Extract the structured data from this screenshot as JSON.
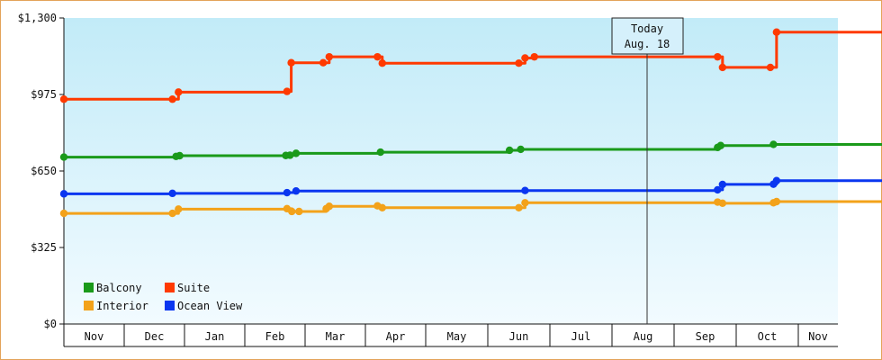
{
  "chart_data": {
    "type": "line",
    "y_ticks": [
      {
        "value": 0,
        "label": "$0"
      },
      {
        "value": 325,
        "label": "$325"
      },
      {
        "value": 650,
        "label": "$650"
      },
      {
        "value": 975,
        "label": "$975"
      },
      {
        "value": 1300,
        "label": "$1,300"
      }
    ],
    "ylim": [
      0,
      1300
    ],
    "months": [
      "Nov",
      "Dec",
      "Jan",
      "Feb",
      "Mar",
      "Apr",
      "May",
      "Jun",
      "Jul",
      "Aug",
      "Sep",
      "Oct",
      "Nov"
    ],
    "today": {
      "line1": "Today",
      "line2": "Aug. 18"
    },
    "grid": false,
    "legend_placement": "bottom-left",
    "series": [
      {
        "name": "Balcony",
        "color": "#1a9a1a",
        "points": [
          [
            0,
            709
          ],
          [
            1.86,
            712
          ],
          [
            1.92,
            715
          ],
          [
            3.68,
            716
          ],
          [
            3.75,
            717
          ],
          [
            3.85,
            725
          ],
          [
            5.25,
            730
          ],
          [
            7.35,
            738
          ],
          [
            7.53,
            742
          ],
          [
            10.7,
            750
          ],
          [
            10.75,
            758
          ],
          [
            11.6,
            763
          ],
          [
            14.65,
            765
          ],
          [
            14.72,
            750
          ],
          [
            16.35,
            752
          ],
          [
            17.6,
            751
          ],
          [
            18.6,
            747
          ],
          [
            20.55,
            745
          ]
        ],
        "projection": [
          [
            20.55,
            745
          ],
          [
            27.5,
            757
          ]
        ]
      },
      {
        "name": "Suite",
        "color": "#ff3a00",
        "points": [
          [
            0,
            955
          ],
          [
            1.8,
            955
          ],
          [
            1.9,
            985
          ],
          [
            3.7,
            988
          ],
          [
            3.77,
            1110
          ],
          [
            4.3,
            1110
          ],
          [
            4.4,
            1135
          ],
          [
            5.2,
            1135
          ],
          [
            5.28,
            1108
          ],
          [
            7.5,
            1108
          ],
          [
            7.6,
            1130
          ],
          [
            7.75,
            1135
          ],
          [
            10.7,
            1135
          ],
          [
            10.78,
            1090
          ],
          [
            11.55,
            1090
          ],
          [
            11.65,
            1240
          ],
          [
            14.65,
            1240
          ],
          [
            14.7,
            1245
          ],
          [
            18.4,
            1248
          ],
          [
            20.5,
            1250
          ],
          [
            20.55,
            1140
          ]
        ],
        "projection": [
          [
            20.55,
            1140
          ],
          [
            24,
            1175
          ],
          [
            27.5,
            1202
          ]
        ]
      },
      {
        "name": "Interior",
        "color": "#f3a21a",
        "points": [
          [
            0,
            470
          ],
          [
            1.8,
            470
          ],
          [
            1.9,
            488
          ],
          [
            3.7,
            490
          ],
          [
            3.78,
            478
          ],
          [
            3.9,
            478
          ],
          [
            4.35,
            490
          ],
          [
            4.4,
            500
          ],
          [
            5.2,
            502
          ],
          [
            5.28,
            494
          ],
          [
            7.5,
            494
          ],
          [
            7.6,
            515
          ],
          [
            10.7,
            518
          ],
          [
            10.78,
            513
          ],
          [
            11.6,
            515
          ],
          [
            11.65,
            520
          ],
          [
            14.65,
            525
          ],
          [
            16.2,
            528
          ],
          [
            17.55,
            526
          ],
          [
            17.6,
            513
          ],
          [
            20.55,
            512
          ]
        ],
        "projection": [
          [
            20.55,
            495
          ],
          [
            27.5,
            510
          ]
        ]
      },
      {
        "name": "Ocean View",
        "color": "#0a36f0",
        "points": [
          [
            0,
            553
          ],
          [
            1.8,
            555
          ],
          [
            3.7,
            558
          ],
          [
            3.85,
            565
          ],
          [
            7.6,
            567
          ],
          [
            10.7,
            570
          ],
          [
            10.78,
            593
          ],
          [
            11.6,
            594
          ],
          [
            11.65,
            609
          ],
          [
            14.65,
            611
          ],
          [
            14.72,
            585
          ],
          [
            16.2,
            585
          ],
          [
            16.3,
            575
          ],
          [
            17.55,
            575
          ],
          [
            18.6,
            573
          ],
          [
            20.55,
            573
          ]
        ],
        "projection": [
          [
            20.55,
            570
          ],
          [
            27.5,
            585
          ]
        ]
      }
    ]
  }
}
